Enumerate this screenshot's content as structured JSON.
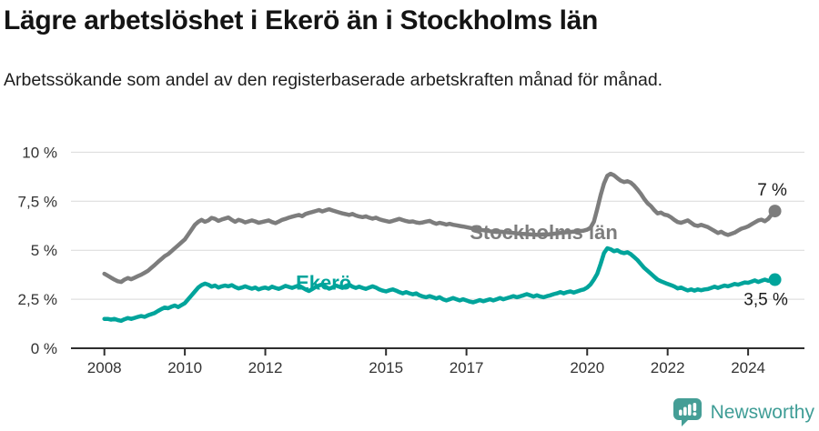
{
  "header": {
    "title": "Lägre arbetslöshet i Ekerö än i Stockholms län",
    "subtitle": "Arbetssökande som andel av den registerbaserade arbetskraften månad för månad."
  },
  "footer": {
    "brand": "Newsworthy"
  },
  "colors": {
    "stockholm_line": "#7d7d7d",
    "ekero_line": "#00a49b",
    "end_label_text": "#1a1a1a",
    "gridline": "#d9d9d9",
    "axis": "#2e2e2e",
    "tick_text": "#333333",
    "logo_teal": "#459e96"
  },
  "chart_data": {
    "type": "line",
    "title": "Lägre arbetslöshet i Ekerö än i Stockholms län",
    "subtitle": "Arbetssökande som andel av den registerbaserade arbetskraften månad för månad.",
    "xlabel": "",
    "ylabel": "",
    "xlim": [
      2007.17,
      2025.4
    ],
    "ylim": [
      0,
      10
    ],
    "grid": true,
    "legend_position": "inline-on-line",
    "x_axis": {
      "ticks": [
        {
          "value": 2008,
          "label": "2008"
        },
        {
          "value": 2010,
          "label": "2010"
        },
        {
          "value": 2012,
          "label": "2012"
        },
        {
          "value": 2015,
          "label": "2015"
        },
        {
          "value": 2017,
          "label": "2017"
        },
        {
          "value": 2020,
          "label": "2020"
        },
        {
          "value": 2022,
          "label": "2022"
        },
        {
          "value": 2024,
          "label": "2024"
        }
      ]
    },
    "y_axis": {
      "ticks": [
        {
          "value": 0,
          "label": "0 %"
        },
        {
          "value": 2.5,
          "label": "2,5 %"
        },
        {
          "value": 5,
          "label": "5 %"
        },
        {
          "value": 7.5,
          "label": "7,5 %"
        },
        {
          "value": 10,
          "label": "10 %"
        }
      ]
    },
    "series": [
      {
        "name": "Stockholms län",
        "color": "#7d7d7d",
        "line_label": {
          "x": 2018.92,
          "y": 5.88
        },
        "end_label": {
          "text": "7 %",
          "position": "above"
        },
        "start_year": 2008.0,
        "points_per_year": 12,
        "values": [
          3.8,
          3.7,
          3.6,
          3.5,
          3.42,
          3.38,
          3.5,
          3.58,
          3.52,
          3.6,
          3.68,
          3.75,
          3.85,
          3.95,
          4.1,
          4.25,
          4.4,
          4.55,
          4.7,
          4.8,
          4.95,
          5.1,
          5.25,
          5.4,
          5.55,
          5.8,
          6.05,
          6.3,
          6.45,
          6.55,
          6.45,
          6.52,
          6.65,
          6.6,
          6.5,
          6.57,
          6.62,
          6.67,
          6.55,
          6.45,
          6.55,
          6.5,
          6.42,
          6.47,
          6.52,
          6.47,
          6.4,
          6.44,
          6.48,
          6.52,
          6.44,
          6.38,
          6.46,
          6.55,
          6.6,
          6.66,
          6.71,
          6.76,
          6.8,
          6.74,
          6.85,
          6.9,
          6.95,
          7.0,
          7.05,
          6.98,
          7.04,
          7.09,
          7.03,
          6.98,
          6.93,
          6.88,
          6.84,
          6.8,
          6.85,
          6.77,
          6.72,
          6.69,
          6.73,
          6.66,
          6.61,
          6.66,
          6.58,
          6.53,
          6.49,
          6.45,
          6.5,
          6.55,
          6.6,
          6.54,
          6.49,
          6.45,
          6.47,
          6.42,
          6.39,
          6.42,
          6.46,
          6.5,
          6.41,
          6.35,
          6.4,
          6.36,
          6.31,
          6.35,
          6.3,
          6.27,
          6.24,
          6.21,
          6.18,
          6.14,
          6.11,
          6.08,
          6.05,
          6.02,
          6.0,
          5.97,
          5.95,
          5.93,
          5.95,
          5.93,
          5.92,
          5.9,
          5.88,
          5.86,
          5.85,
          5.83,
          5.82,
          5.81,
          5.8,
          5.79,
          5.8,
          5.81,
          5.8,
          5.82,
          5.84,
          5.86,
          5.88,
          5.9,
          5.92,
          5.93,
          5.95,
          5.96,
          5.98,
          6.0,
          6.05,
          6.15,
          6.45,
          7.1,
          7.8,
          8.4,
          8.8,
          8.9,
          8.82,
          8.68,
          8.55,
          8.48,
          8.52,
          8.45,
          8.3,
          8.1,
          7.88,
          7.62,
          7.4,
          7.25,
          7.05,
          6.88,
          6.92,
          6.82,
          6.78,
          6.68,
          6.55,
          6.44,
          6.4,
          6.46,
          6.52,
          6.4,
          6.28,
          6.24,
          6.3,
          6.24,
          6.18,
          6.08,
          5.98,
          5.88,
          5.94,
          5.84,
          5.78,
          5.84,
          5.9,
          6.0,
          6.1,
          6.15,
          6.22,
          6.32,
          6.42,
          6.52,
          6.56,
          6.48,
          6.6,
          6.82,
          7.0
        ]
      },
      {
        "name": "Ekerö",
        "color": "#00a49b",
        "line_label": {
          "x": 2013.45,
          "y": 3.32
        },
        "end_label": {
          "text": "3,5 %",
          "position": "below"
        },
        "start_year": 2008.0,
        "points_per_year": 12,
        "values": [
          1.5,
          1.5,
          1.46,
          1.5,
          1.44,
          1.4,
          1.48,
          1.54,
          1.5,
          1.55,
          1.6,
          1.64,
          1.6,
          1.68,
          1.74,
          1.8,
          1.9,
          2.0,
          2.08,
          2.04,
          2.12,
          2.18,
          2.1,
          2.2,
          2.3,
          2.5,
          2.7,
          2.9,
          3.1,
          3.22,
          3.3,
          3.24,
          3.14,
          3.2,
          3.1,
          3.16,
          3.2,
          3.16,
          3.22,
          3.12,
          3.05,
          3.1,
          3.16,
          3.1,
          3.04,
          3.1,
          3.0,
          3.06,
          3.1,
          3.04,
          3.14,
          3.08,
          3.03,
          3.1,
          3.18,
          3.13,
          3.08,
          3.14,
          3.2,
          3.1,
          3.0,
          2.92,
          3.02,
          3.12,
          3.2,
          3.26,
          3.14,
          3.04,
          3.1,
          3.2,
          3.14,
          3.08,
          3.18,
          3.24,
          3.14,
          3.08,
          3.14,
          3.08,
          3.03,
          3.1,
          3.16,
          3.1,
          3.0,
          2.94,
          2.9,
          2.96,
          3.0,
          2.94,
          2.86,
          2.8,
          2.86,
          2.8,
          2.75,
          2.8,
          2.7,
          2.64,
          2.6,
          2.66,
          2.6,
          2.54,
          2.6,
          2.5,
          2.44,
          2.5,
          2.56,
          2.5,
          2.44,
          2.5,
          2.44,
          2.38,
          2.34,
          2.4,
          2.46,
          2.4,
          2.45,
          2.5,
          2.44,
          2.5,
          2.56,
          2.5,
          2.55,
          2.6,
          2.66,
          2.6,
          2.65,
          2.7,
          2.76,
          2.7,
          2.64,
          2.7,
          2.64,
          2.6,
          2.66,
          2.7,
          2.76,
          2.8,
          2.86,
          2.8,
          2.86,
          2.9,
          2.84,
          2.9,
          2.96,
          3.0,
          3.1,
          3.25,
          3.5,
          3.8,
          4.3,
          4.85,
          5.1,
          5.05,
          4.95,
          5.0,
          4.9,
          4.85,
          4.9,
          4.8,
          4.65,
          4.5,
          4.3,
          4.1,
          3.95,
          3.8,
          3.65,
          3.5,
          3.42,
          3.35,
          3.28,
          3.22,
          3.15,
          3.05,
          3.1,
          3.02,
          2.95,
          3.0,
          2.94,
          3.0,
          2.96,
          3.0,
          3.02,
          3.08,
          3.14,
          3.08,
          3.14,
          3.2,
          3.16,
          3.22,
          3.28,
          3.24,
          3.3,
          3.36,
          3.34,
          3.4,
          3.46,
          3.38,
          3.44,
          3.5,
          3.44,
          3.48,
          3.5
        ]
      }
    ]
  }
}
